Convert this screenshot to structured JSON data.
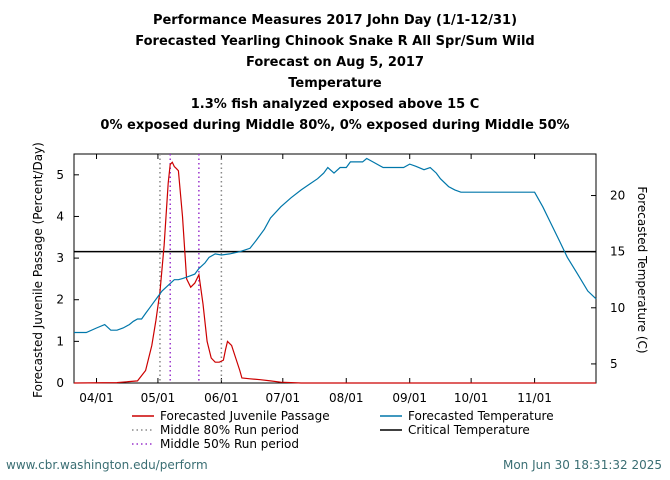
{
  "chart_data": {
    "type": "line",
    "title_lines": [
      "Performance Measures 2017 John Day (1/1-12/31)",
      "Forecasted Yearling Chinook Snake R All Spr/Sum Wild",
      "Forecast on Aug 5, 2017",
      "Temperature",
      "1.3% fish analyzed exposed above 15 C",
      "0% exposed during Middle 80%, 0% exposed during Middle 50%"
    ],
    "ylabel": "Forecasted Juvenile Passage (Percent/Day)",
    "y2label": "Forecasted Temperature (C)",
    "x_tick_labels": [
      "04/01",
      "05/01",
      "06/01",
      "07/01",
      "08/01",
      "09/01",
      "10/01",
      "11/01"
    ],
    "x_tick_days": [
      0,
      30,
      61,
      91,
      122,
      153,
      183,
      214
    ],
    "xlim_days": [
      -11,
      244
    ],
    "ylim": [
      0,
      5.5
    ],
    "y_ticks": [
      0,
      1,
      2,
      3,
      4,
      5
    ],
    "y2lim": [
      3.3,
      23.7
    ],
    "y2_ticks": [
      5,
      10,
      15,
      20
    ],
    "grid": false,
    "legend_position": "bottom",
    "legend": [
      {
        "label": "Forecasted Juvenile Passage",
        "color": "#cc0000",
        "style": "solid"
      },
      {
        "label": "Forecasted Temperature",
        "color": "#0077aa",
        "style": "solid"
      },
      {
        "label": "Middle 80% Run period",
        "color": "#888888",
        "style": "dotted"
      },
      {
        "label": "Critical Temperature",
        "color": "#000000",
        "style": "solid"
      },
      {
        "label": "Middle 50% Run period",
        "color": "#9933cc",
        "style": "dotted"
      }
    ],
    "critical_temperature": 15,
    "middle80_days": [
      31,
      61
    ],
    "middle50_days": [
      36,
      50
    ],
    "series": [
      {
        "name": "Forecasted Juvenile Passage",
        "axis": "left",
        "color": "#cc0000",
        "x_days": [
          -11,
          10,
          20,
          24,
          27,
          29,
          31,
          33,
          35,
          36,
          37,
          38,
          39,
          40,
          42,
          44,
          46,
          48,
          50,
          52,
          54,
          56,
          58,
          60,
          62,
          63,
          64,
          66,
          68,
          70,
          71,
          75,
          80,
          85,
          90,
          100,
          244
        ],
        "values": [
          0,
          0.01,
          0.05,
          0.3,
          0.9,
          1.5,
          2.2,
          3.3,
          4.8,
          5.25,
          5.3,
          5.2,
          5.15,
          5.1,
          4.0,
          2.5,
          2.3,
          2.4,
          2.6,
          1.9,
          1.0,
          0.6,
          0.5,
          0.5,
          0.55,
          0.8,
          1.0,
          0.9,
          0.6,
          0.3,
          0.12,
          0.1,
          0.08,
          0.05,
          0.02,
          0.0,
          0
        ]
      },
      {
        "name": "Forecasted Temperature",
        "axis": "right",
        "color": "#0077aa",
        "x_days": [
          -11,
          -5,
          0,
          4,
          7,
          10,
          13,
          16,
          18,
          20,
          22,
          24,
          26,
          28,
          30,
          32,
          35,
          38,
          40,
          42,
          45,
          48,
          50,
          53,
          55,
          58,
          61,
          65,
          70,
          75,
          78,
          82,
          85,
          90,
          95,
          100,
          104,
          108,
          111,
          113,
          116,
          119,
          122,
          124,
          127,
          130,
          132,
          135,
          140,
          145,
          150,
          153,
          156,
          160,
          163,
          166,
          168,
          172,
          175,
          178,
          183,
          190,
          195,
          200,
          205,
          210,
          214,
          218,
          222,
          226,
          230,
          235,
          240,
          244
        ],
        "values": [
          7.8,
          7.8,
          8.2,
          8.5,
          8.0,
          8.0,
          8.2,
          8.5,
          8.8,
          9.0,
          9.0,
          9.5,
          10.0,
          10.5,
          11.0,
          11.5,
          12.0,
          12.5,
          12.5,
          12.6,
          12.8,
          13.0,
          13.5,
          14.0,
          14.5,
          14.8,
          14.7,
          14.8,
          15.0,
          15.3,
          16.0,
          17.0,
          18.0,
          19.0,
          19.8,
          20.5,
          21.0,
          21.5,
          22.0,
          22.5,
          22.0,
          22.5,
          22.5,
          23.0,
          23.0,
          23.0,
          23.3,
          23.0,
          22.5,
          22.5,
          22.5,
          22.8,
          22.6,
          22.3,
          22.5,
          22.0,
          21.5,
          20.8,
          20.5,
          20.3,
          20.3,
          20.3,
          20.3,
          20.3,
          20.3,
          20.3,
          20.3,
          19.0,
          17.5,
          16.0,
          14.5,
          13.0,
          11.5,
          10.8
        ]
      }
    ]
  },
  "footer": {
    "left": "www.cbr.washington.edu/perform",
    "right": "Mon Jun 30 18:31:32 2025"
  }
}
